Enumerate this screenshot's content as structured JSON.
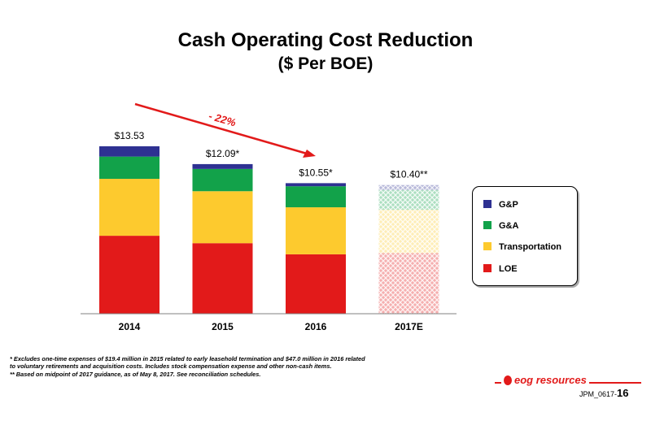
{
  "chart_data": {
    "type": "bar",
    "stacked": true,
    "title": "Cash Operating Cost Reduction",
    "subtitle": "($ Per BOE)",
    "categories": [
      "2014",
      "2015",
      "2016",
      "2017E"
    ],
    "totals_labels": [
      "$13.53",
      "$12.09*",
      "$10.55*",
      "$10.40**"
    ],
    "totals": [
      13.53,
      12.09,
      10.55,
      10.4
    ],
    "series": [
      {
        "name": "LOE",
        "color": "#e21a1a",
        "values": [
          6.3,
          5.7,
          4.8,
          4.9
        ]
      },
      {
        "name": "Transportation",
        "color": "#fdca2e",
        "values": [
          4.6,
          4.2,
          3.8,
          3.5
        ]
      },
      {
        "name": "G&A",
        "color": "#12a24a",
        "values": [
          1.8,
          1.8,
          1.7,
          1.6
        ]
      },
      {
        "name": "G&P",
        "color": "#2e3192",
        "values": [
          0.83,
          0.39,
          0.25,
          0.4
        ]
      }
    ],
    "estimate_category": "2017E",
    "ylim": [
      0,
      13.53
    ],
    "annotation": {
      "text": "- 22%",
      "color": "#e21a1a"
    },
    "legend_position": "right",
    "grid": false
  },
  "footnotes": [
    "*  Excludes one-time expenses of $19.4 million in 2015 related to early leasehold termination and $47.0 million in 2016 related",
    "    to voluntary retirements and acquisition costs. Includes stock compensation expense and other non-cash items.",
    "** Based on midpoint of 2017 guidance, as of May 8, 2017. See reconciliation schedules."
  ],
  "footer": {
    "logo_text": "eog resources",
    "code": "JPM_0617-",
    "page_number": "16"
  }
}
